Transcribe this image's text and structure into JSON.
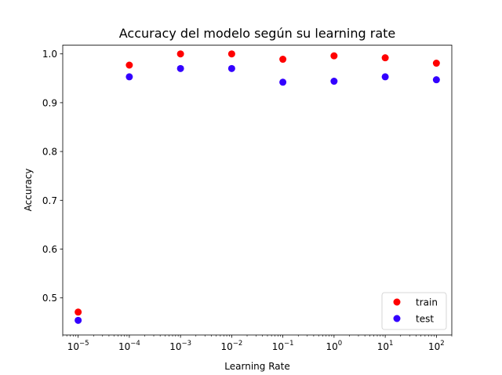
{
  "chart_data": {
    "type": "scatter",
    "title": "Accuracy del modelo según su learning rate",
    "xlabel": "Learning Rate",
    "ylabel": "Accuracy",
    "xscale": "log",
    "xlim": [
      5e-06,
      200
    ],
    "ylim": [
      0.424,
      1.018
    ],
    "x": [
      1e-05,
      0.0001,
      0.001,
      0.01,
      0.1,
      1,
      10,
      100
    ],
    "x_tick_labels": [
      {
        "value": 1e-05,
        "base": "10",
        "exp": "−5"
      },
      {
        "value": 0.0001,
        "base": "10",
        "exp": "−4"
      },
      {
        "value": 0.001,
        "base": "10",
        "exp": "−3"
      },
      {
        "value": 0.01,
        "base": "10",
        "exp": "−2"
      },
      {
        "value": 0.1,
        "base": "10",
        "exp": "−1"
      },
      {
        "value": 1,
        "base": "10",
        "exp": "0"
      },
      {
        "value": 10,
        "base": "10",
        "exp": "1"
      },
      {
        "value": 100,
        "base": "10",
        "exp": "2"
      }
    ],
    "y_ticks": [
      0.5,
      0.6,
      0.7,
      0.8,
      0.9,
      1.0
    ],
    "y_tick_labels": [
      "0.5",
      "0.6",
      "0.7",
      "0.8",
      "0.9",
      "1.0"
    ],
    "series": [
      {
        "name": "train",
        "color": "#ff0000",
        "values": [
          0.471,
          0.977,
          1.0,
          1.0,
          0.989,
          0.996,
          0.992,
          0.981
        ]
      },
      {
        "name": "test",
        "color": "#3300ff",
        "values": [
          0.454,
          0.953,
          0.97,
          0.97,
          0.942,
          0.944,
          0.953,
          0.947
        ]
      }
    ],
    "grid": false,
    "legend_position": "lower right"
  }
}
